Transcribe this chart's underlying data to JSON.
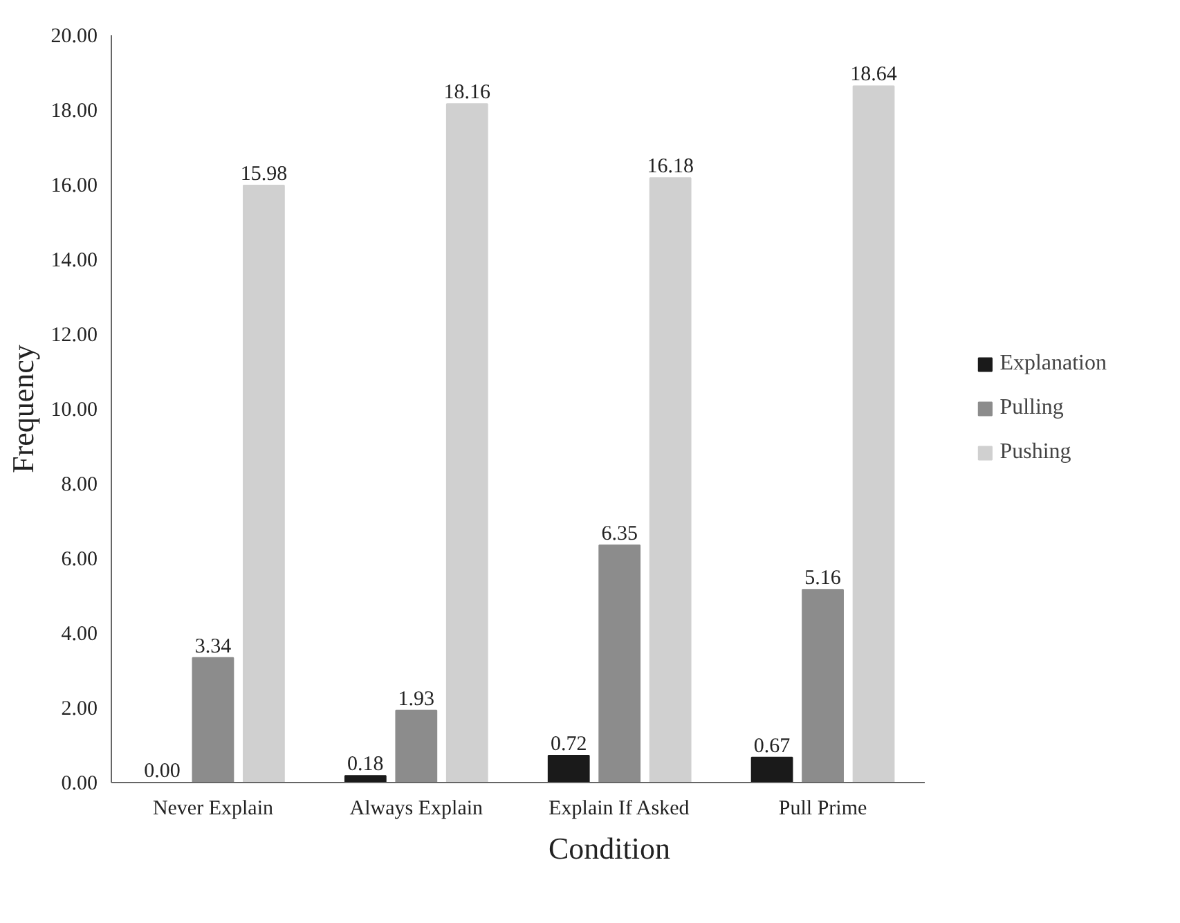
{
  "chart_data": {
    "type": "bar",
    "xlabel": "Condition",
    "ylabel": "Frequency",
    "categories": [
      "Never Explain",
      "Always Explain",
      "Explain If Asked",
      "Pull Prime"
    ],
    "series": [
      {
        "name": "Explanation",
        "color": "#1a1a1a",
        "values": [
          0.0,
          0.18,
          0.72,
          0.67
        ],
        "value_labels": [
          "0.00",
          "0.18",
          "0.72",
          "0.67"
        ]
      },
      {
        "name": "Pulling",
        "color": "#8c8c8c",
        "values": [
          3.34,
          1.93,
          6.35,
          5.16
        ],
        "value_labels": [
          "3.34",
          "1.93",
          "6.35",
          "5.16"
        ]
      },
      {
        "name": "Pushing",
        "color": "#d0d0d0",
        "values": [
          15.98,
          18.16,
          16.18,
          18.64
        ],
        "value_labels": [
          "15.98",
          "18.16",
          "16.18",
          "18.64"
        ]
      }
    ],
    "ylim": [
      0,
      20
    ],
    "yticks": [
      {
        "value": 0,
        "label": "0.00"
      },
      {
        "value": 2,
        "label": "2.00"
      },
      {
        "value": 4,
        "label": "4.00"
      },
      {
        "value": 6,
        "label": "6.00"
      },
      {
        "value": 8,
        "label": "8.00"
      },
      {
        "value": 10,
        "label": "10.00"
      },
      {
        "value": 12,
        "label": "12.00"
      },
      {
        "value": 14,
        "label": "14.00"
      },
      {
        "value": 16,
        "label": "16.00"
      },
      {
        "value": 18,
        "label": "18.00"
      },
      {
        "value": 20,
        "label": "20.00"
      }
    ],
    "grid": false,
    "legend": "right"
  }
}
